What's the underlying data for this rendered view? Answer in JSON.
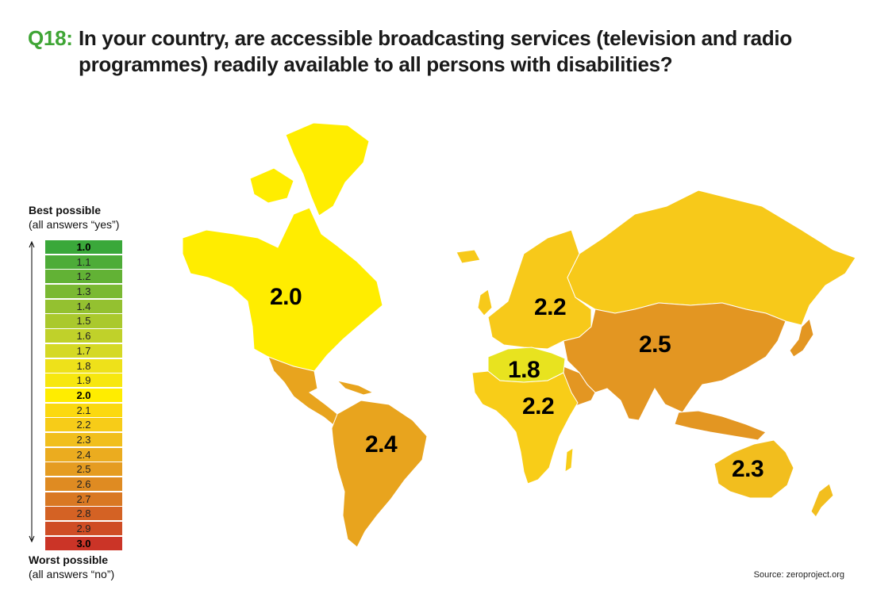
{
  "title": {
    "question_number": "Q18:",
    "line1": "In your country, are accessible broadcasting services (television and radio",
    "line2": "programmes) readily available to all persons with disabilities?"
  },
  "legend": {
    "top_heading": "Best possible",
    "top_sub": "(all answers “yes”)",
    "bottom_heading": "Worst possible",
    "bottom_sub": "(all answers “no”)",
    "scale": [
      {
        "label": "1.0",
        "color": "#3aa83a"
      },
      {
        "label": "1.1",
        "color": "#4dac38"
      },
      {
        "label": "1.2",
        "color": "#62b235"
      },
      {
        "label": "1.3",
        "color": "#7ab933"
      },
      {
        "label": "1.4",
        "color": "#94c130"
      },
      {
        "label": "1.5",
        "color": "#aac92d"
      },
      {
        "label": "1.6",
        "color": "#c0d12a"
      },
      {
        "label": "1.7",
        "color": "#d5d925"
      },
      {
        "label": "1.8",
        "color": "#eee11a"
      },
      {
        "label": "1.9",
        "color": "#f7e70f"
      },
      {
        "label": "2.0",
        "color": "#ffed00"
      },
      {
        "label": "2.1",
        "color": "#fbd910"
      },
      {
        "label": "2.2",
        "color": "#f7cc18"
      },
      {
        "label": "2.3",
        "color": "#f1bf1d"
      },
      {
        "label": "2.4",
        "color": "#ebac1f"
      },
      {
        "label": "2.5",
        "color": "#e59c21"
      },
      {
        "label": "2.6",
        "color": "#df8b22"
      },
      {
        "label": "2.7",
        "color": "#d97823"
      },
      {
        "label": "2.8",
        "color": "#d46224"
      },
      {
        "label": "2.9",
        "color": "#cf4d25"
      },
      {
        "label": "3.0",
        "color": "#cb3427"
      }
    ]
  },
  "regions": [
    {
      "name": "North America",
      "value": "2.0",
      "color": "#ffed00"
    },
    {
      "name": "Latin America",
      "value": "2.4",
      "color": "#e8a41e"
    },
    {
      "name": "Europe",
      "value": "2.2",
      "color": "#f7c91a"
    },
    {
      "name": "North Africa",
      "value": "1.8",
      "color": "#e8e31f"
    },
    {
      "name": "Sub-Saharan Africa",
      "value": "2.2",
      "color": "#f8cd18"
    },
    {
      "name": "Asia",
      "value": "2.5",
      "color": "#e39622"
    },
    {
      "name": "Oceania",
      "value": "2.3",
      "color": "#f2be1e"
    }
  ],
  "source": "Source: zeroproject.org"
}
